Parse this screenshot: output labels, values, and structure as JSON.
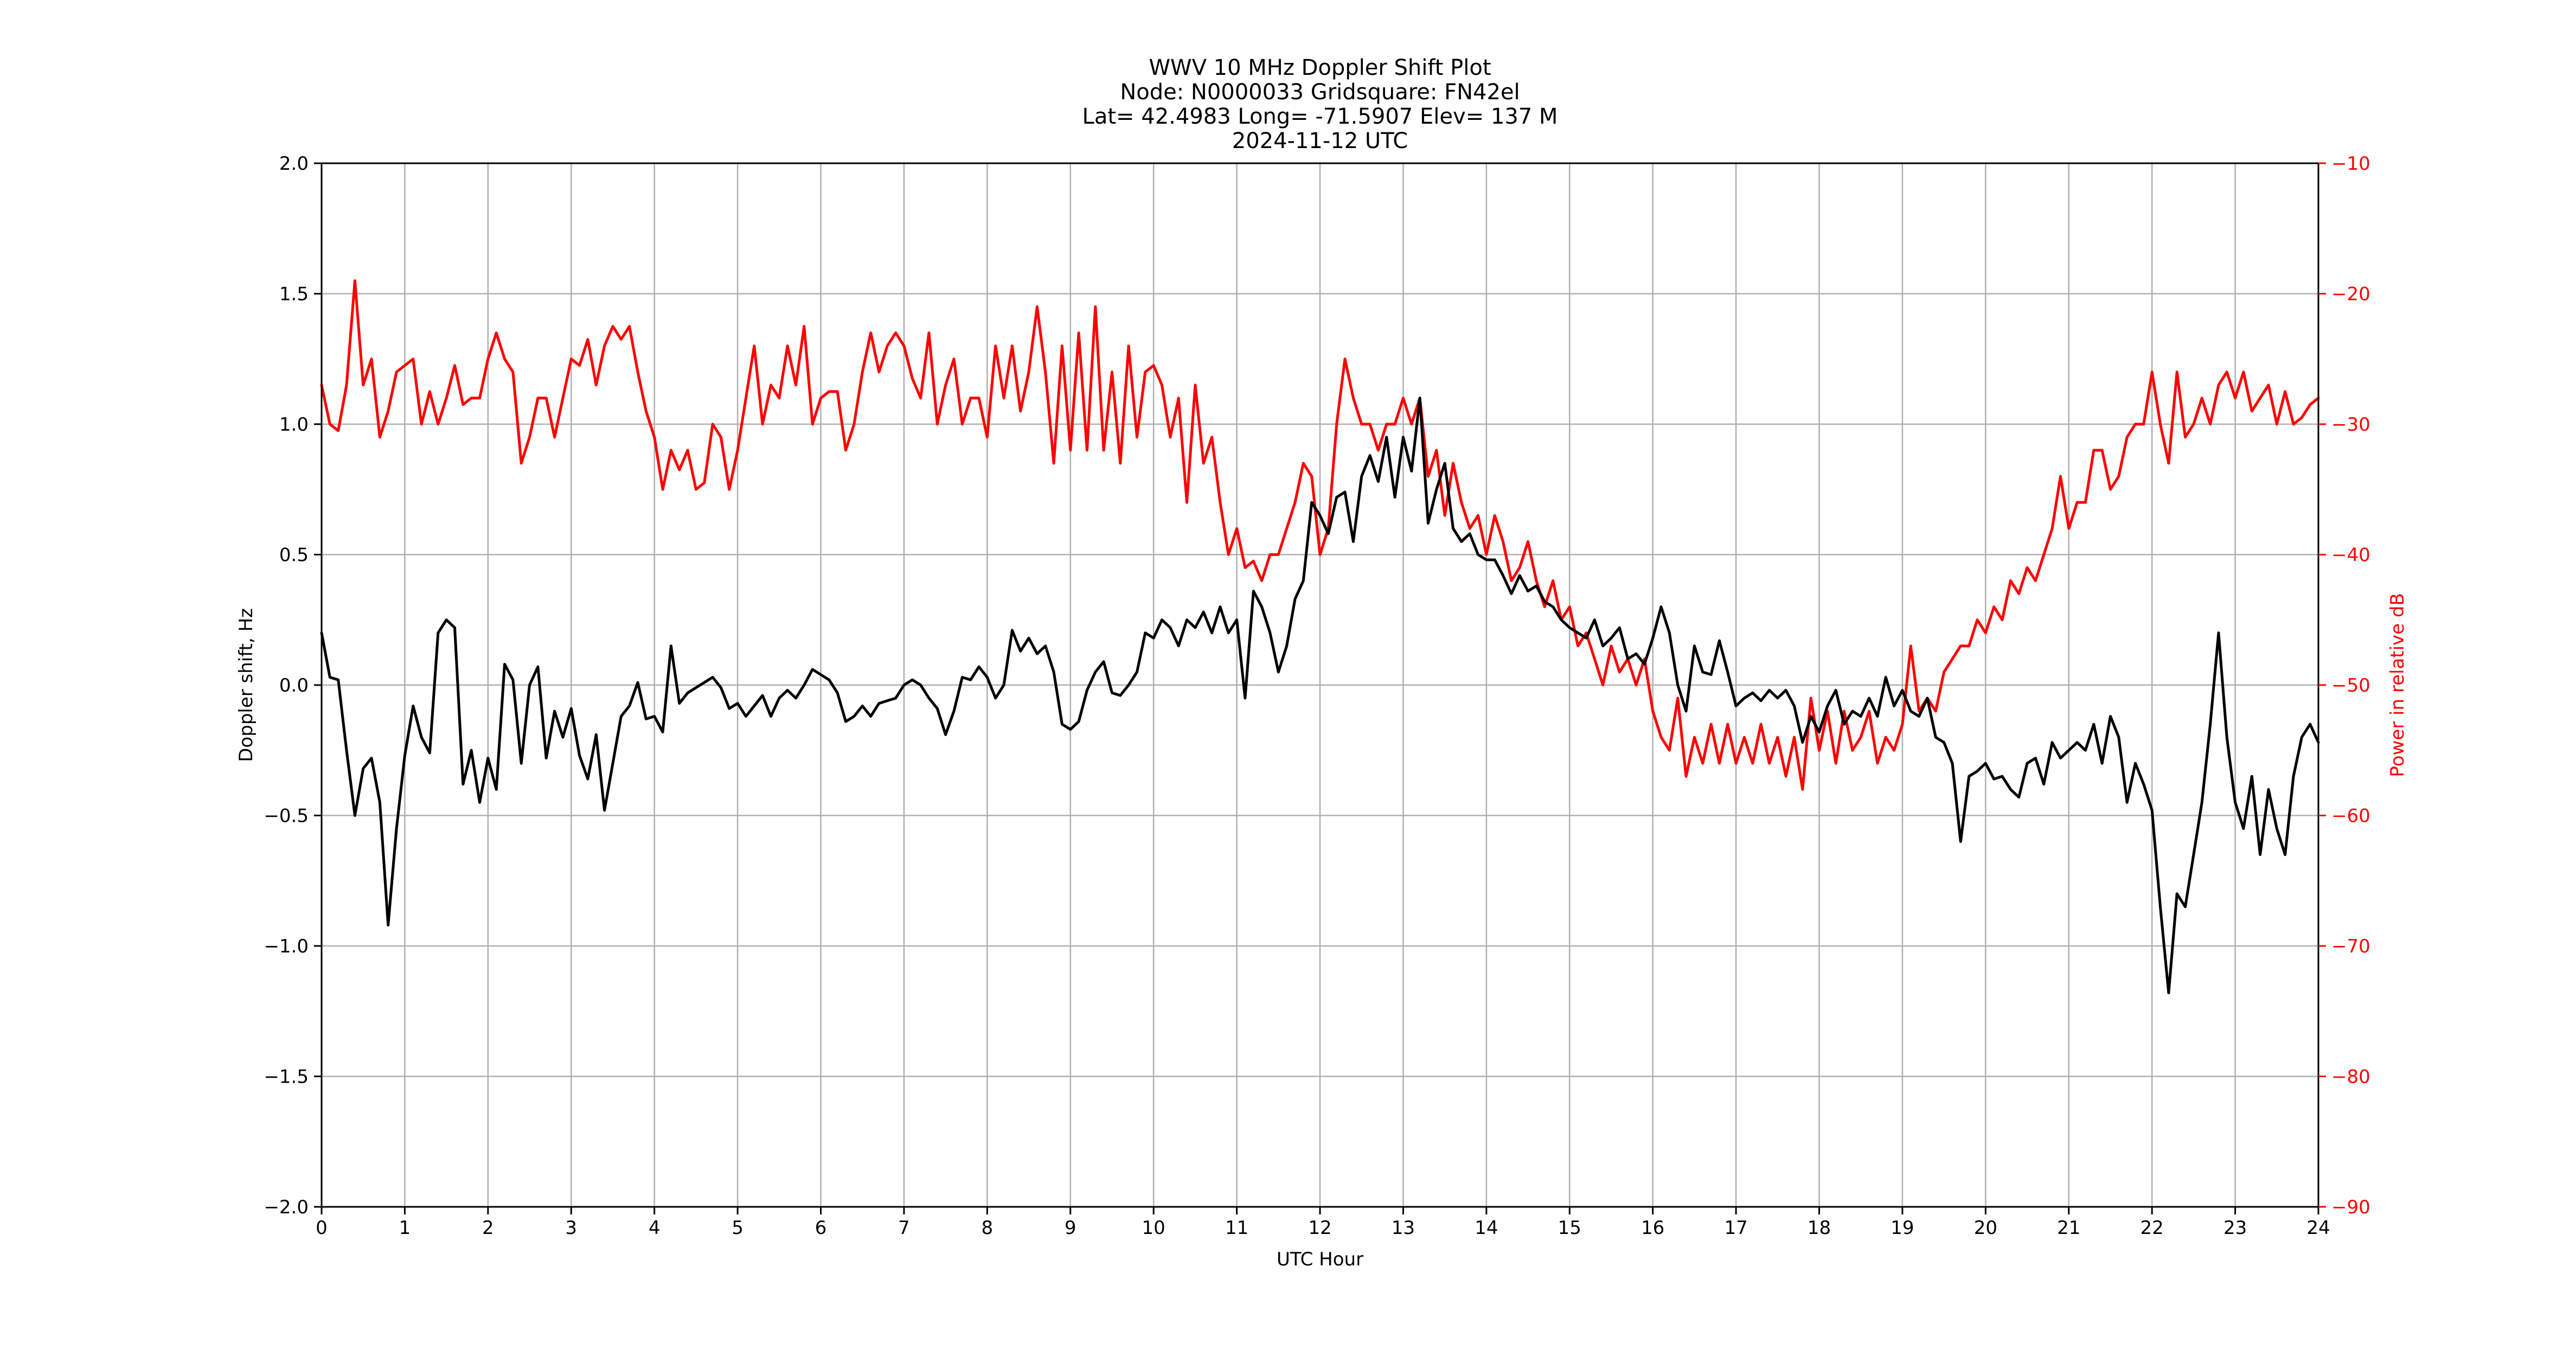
{
  "chart_data": {
    "type": "line",
    "title_lines": [
      "WWV 10 MHz Doppler Shift Plot",
      "Node:  N0000033     Gridsquare:  FN42el",
      "Lat= 42.4983    Long= -71.5907    Elev= 137 M",
      "2024-11-12  UTC"
    ],
    "xlabel": "UTC Hour",
    "ylabel": "Doppler shift, Hz",
    "ylabel_right": "Power in relative dB",
    "xlim": [
      0,
      24
    ],
    "ylim": [
      -2.0,
      2.0
    ],
    "ylim_right": [
      -90,
      -10
    ],
    "grid": true,
    "x_ticks": [
      "0",
      "1",
      "2",
      "3",
      "4",
      "5",
      "6",
      "7",
      "8",
      "9",
      "10",
      "11",
      "12",
      "13",
      "14",
      "15",
      "16",
      "17",
      "18",
      "19",
      "20",
      "21",
      "22",
      "23",
      "24"
    ],
    "y_ticks": [
      "−2.0",
      "−1.5",
      "−1.0",
      "−0.5",
      "0.0",
      "0.5",
      "1.0",
      "1.5",
      "2.0"
    ],
    "y_ticks_right": [
      "−90",
      "−80",
      "−70",
      "−60",
      "−50",
      "−40",
      "−30",
      "−20",
      "−10"
    ],
    "colors": {
      "doppler": "#000000",
      "power": "#ff0000",
      "grid": "#b0b0b0"
    },
    "x_start": 0,
    "x_step": 0.1,
    "series": [
      {
        "name": "Doppler shift (Hz)",
        "axis": "left",
        "values": [
          0.2,
          0.03,
          0.02,
          -0.25,
          -0.5,
          -0.32,
          -0.28,
          -0.45,
          -0.92,
          -0.55,
          -0.27,
          -0.08,
          -0.2,
          -0.26,
          0.2,
          0.25,
          0.22,
          -0.38,
          -0.25,
          -0.45,
          -0.28,
          -0.4,
          0.08,
          0.02,
          -0.3,
          0.0,
          0.07,
          -0.28,
          -0.1,
          -0.2,
          -0.09,
          -0.27,
          -0.36,
          -0.19,
          -0.48,
          -0.3,
          -0.12,
          -0.08,
          0.01,
          -0.13,
          -0.12,
          -0.18,
          0.15,
          -0.07,
          -0.03,
          -0.01,
          0.01,
          0.03,
          -0.01,
          -0.09,
          -0.07,
          -0.12,
          -0.08,
          -0.04,
          -0.12,
          -0.05,
          -0.02,
          -0.05,
          0.0,
          0.06,
          0.04,
          0.02,
          -0.03,
          -0.14,
          -0.12,
          -0.08,
          -0.12,
          -0.07,
          -0.06,
          -0.05,
          0.0,
          0.02,
          0.0,
          -0.05,
          -0.09,
          -0.19,
          -0.1,
          0.03,
          0.02,
          0.07,
          0.03,
          -0.05,
          0.0,
          0.21,
          0.13,
          0.18,
          0.12,
          0.15,
          0.05,
          -0.15,
          -0.17,
          -0.14,
          -0.02,
          0.05,
          0.09,
          -0.03,
          -0.04,
          0.0,
          0.05,
          0.2,
          0.18,
          0.25,
          0.22,
          0.15,
          0.25,
          0.22,
          0.28,
          0.2,
          0.3,
          0.2,
          0.25,
          -0.05,
          0.36,
          0.3,
          0.2,
          0.05,
          0.15,
          0.33,
          0.4,
          0.7,
          0.65,
          0.58,
          0.72,
          0.74,
          0.55,
          0.8,
          0.88,
          0.78,
          0.95,
          0.72,
          0.95,
          0.82,
          1.1,
          0.62,
          0.75,
          0.85,
          0.6,
          0.55,
          0.58,
          0.5,
          0.48,
          0.48,
          0.42,
          0.35,
          0.42,
          0.36,
          0.38,
          0.32,
          0.3,
          0.25,
          0.22,
          0.2,
          0.18,
          0.25,
          0.15,
          0.18,
          0.22,
          0.1,
          0.12,
          0.08,
          0.18,
          0.3,
          0.2,
          0.0,
          -0.1,
          0.15,
          0.05,
          0.04,
          0.17,
          0.05,
          -0.08,
          -0.05,
          -0.03,
          -0.06,
          -0.02,
          -0.05,
          -0.02,
          -0.08,
          -0.22,
          -0.12,
          -0.18,
          -0.08,
          -0.02,
          -0.15,
          -0.1,
          -0.12,
          -0.05,
          -0.12,
          0.03,
          -0.08,
          -0.02,
          -0.1,
          -0.12,
          -0.05,
          -0.2,
          -0.22,
          -0.3,
          -0.6,
          -0.35,
          -0.33,
          -0.3,
          -0.36,
          -0.35,
          -0.4,
          -0.43,
          -0.3,
          -0.28,
          -0.38,
          -0.22,
          -0.28,
          -0.25,
          -0.22,
          -0.25,
          -0.15,
          -0.3,
          -0.12,
          -0.2,
          -0.45,
          -0.3,
          -0.38,
          -0.48,
          -0.85,
          -1.18,
          -0.8,
          -0.85,
          -0.65,
          -0.45,
          -0.15,
          0.2,
          -0.2,
          -0.45,
          -0.55,
          -0.35,
          -0.65,
          -0.4,
          -0.55,
          -0.65,
          -0.35,
          -0.2,
          -0.15,
          -0.22
        ]
      },
      {
        "name": "Power (relative dB)",
        "axis": "right",
        "values": [
          -27,
          -30,
          -30.5,
          -27,
          -19,
          -27,
          -25,
          -31,
          -29,
          -26,
          -25.5,
          -25,
          -30,
          -27.5,
          -30,
          -28,
          -25.5,
          -28.5,
          -28,
          -28,
          -25,
          -23,
          -25,
          -26,
          -33,
          -31,
          -28,
          -28,
          -31,
          -28,
          -25,
          -25.5,
          -23.5,
          -27,
          -24,
          -22.5,
          -23.5,
          -22.5,
          -26,
          -29,
          -31,
          -35,
          -32,
          -33.5,
          -32,
          -35,
          -34.5,
          -30,
          -31,
          -35,
          -32,
          -28,
          -24,
          -30,
          -27,
          -28,
          -24,
          -27,
          -22.5,
          -30,
          -28,
          -27.5,
          -27.5,
          -32,
          -30,
          -26,
          -23,
          -26,
          -24,
          -23,
          -24,
          -26.5,
          -28,
          -23,
          -30,
          -27,
          -25,
          -30,
          -28,
          -28,
          -31,
          -24,
          -28,
          -24,
          -29,
          -26,
          -21,
          -26,
          -33,
          -24,
          -32,
          -23,
          -32,
          -21,
          -32,
          -26,
          -33,
          -24,
          -31,
          -26,
          -25.5,
          -27,
          -31,
          -28,
          -36,
          -27,
          -33,
          -31,
          -36,
          -40,
          -38,
          -41,
          -40.5,
          -42,
          -40,
          -40,
          -38,
          -36,
          -33,
          -34,
          -40,
          -38,
          -30,
          -25,
          -28,
          -30,
          -30,
          -32,
          -30,
          -30,
          -28,
          -30,
          -28,
          -34,
          -32,
          -37,
          -33,
          -36,
          -38,
          -37,
          -40,
          -37,
          -39,
          -42,
          -41,
          -39,
          -42,
          -44,
          -42,
          -45,
          -44,
          -47,
          -46,
          -48,
          -50,
          -47,
          -49,
          -48,
          -50,
          -48,
          -52,
          -54,
          -55,
          -51,
          -57,
          -54,
          -56,
          -53,
          -56,
          -53,
          -56,
          -54,
          -56,
          -53,
          -56,
          -54,
          -57,
          -54,
          -58,
          -51,
          -55,
          -52,
          -56,
          -52,
          -55,
          -54,
          -52,
          -56,
          -54,
          -55,
          -53,
          -47,
          -52,
          -51,
          -52,
          -49,
          -48,
          -47,
          -47,
          -45,
          -46,
          -44,
          -45,
          -42,
          -43,
          -41,
          -42,
          -40,
          -38,
          -34,
          -38,
          -36,
          -36,
          -32,
          -32,
          -35,
          -34,
          -31,
          -30,
          -30,
          -26,
          -30,
          -33,
          -26,
          -31,
          -30,
          -28,
          -30,
          -27,
          -26,
          -28,
          -26,
          -29,
          -28,
          -27,
          -30,
          -27.5,
          -30,
          -29.5,
          -28.5,
          -28
        ]
      }
    ]
  }
}
